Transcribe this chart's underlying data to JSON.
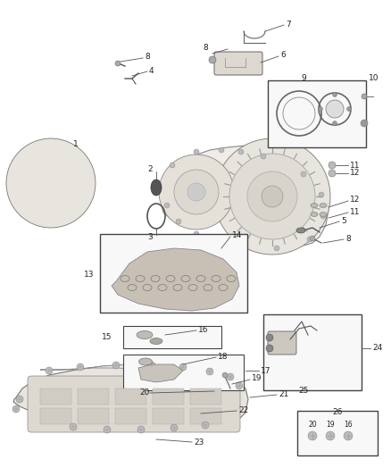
{
  "background": "#ffffff",
  "figsize": [
    4.38,
    5.33
  ],
  "dpi": 100,
  "text_color": "#222222",
  "line_color": "#555555",
  "fs": 6.5
}
